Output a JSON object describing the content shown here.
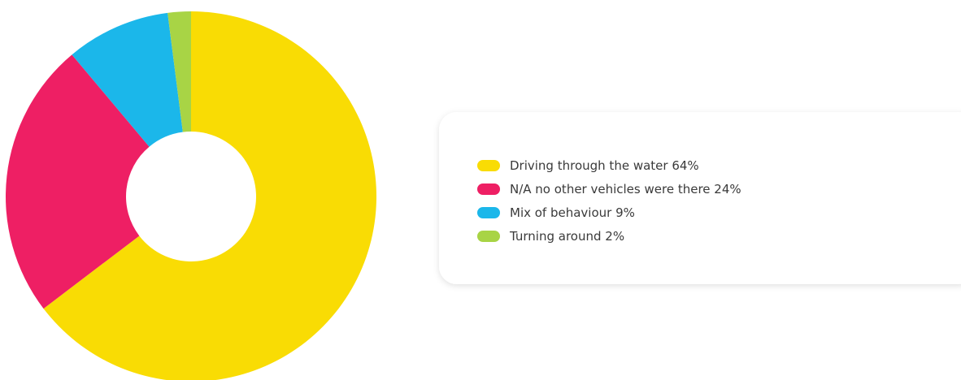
{
  "chart_data": {
    "type": "donut",
    "categories": [
      "Driving through the water",
      "N/A no other vehicles were there",
      "Mix of behaviour",
      "Turning around"
    ],
    "values": [
      64,
      24,
      9,
      2
    ],
    "value_labels": [
      "64%",
      "24%",
      "9%",
      "2%"
    ],
    "colors": [
      "#f9dc04",
      "#ee1f64",
      "#1bb7ea",
      "#a8d445"
    ]
  }
}
